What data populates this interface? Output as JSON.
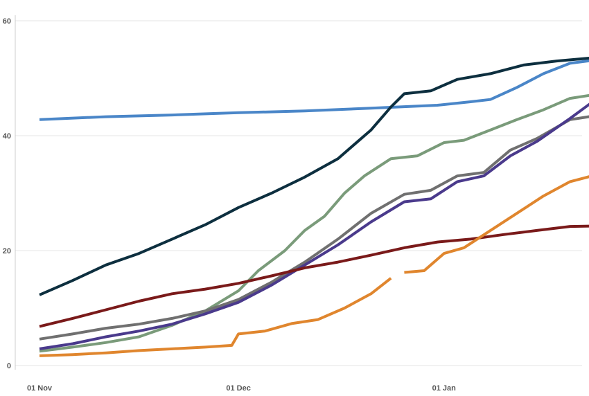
{
  "chart_data": {
    "type": "line",
    "title": "",
    "xlabel": "",
    "ylabel": "",
    "x_start": "2020-11-01",
    "x_range": [
      "2020-11-01",
      "2021-01-26"
    ],
    "ylim": [
      0,
      60
    ],
    "y_ticks": [
      0,
      20,
      40,
      60
    ],
    "x_ticks": [
      {
        "date": "2020-11-01",
        "label": "01 Nov"
      },
      {
        "date": "2020-12-01",
        "label": "01 Dec"
      },
      {
        "date": "2021-01-01",
        "label": "01 Jan"
      }
    ],
    "grid": "horizontal",
    "legend": "none",
    "series": [
      {
        "color": "#4a86c8",
        "points": [
          [
            "2020-11-01",
            42.8
          ],
          [
            "2020-11-11",
            43.3
          ],
          [
            "2020-11-21",
            43.6
          ],
          [
            "2020-12-01",
            44.0
          ],
          [
            "2020-12-11",
            44.3
          ],
          [
            "2020-12-21",
            44.8
          ],
          [
            "2020-12-31",
            45.3
          ],
          [
            "2021-01-05",
            45.9
          ],
          [
            "2021-01-08",
            46.3
          ],
          [
            "2021-01-12",
            48.4
          ],
          [
            "2021-01-16",
            50.8
          ],
          [
            "2021-01-20",
            52.6
          ],
          [
            "2021-01-24",
            53.2
          ]
        ]
      },
      {
        "color": "#0d2f3f",
        "points": [
          [
            "2020-11-01",
            12.3
          ],
          [
            "2020-11-06",
            14.8
          ],
          [
            "2020-11-11",
            17.5
          ],
          [
            "2020-11-16",
            19.5
          ],
          [
            "2020-11-21",
            22.0
          ],
          [
            "2020-11-26",
            24.5
          ],
          [
            "2020-12-01",
            27.5
          ],
          [
            "2020-12-06",
            30.0
          ],
          [
            "2020-12-11",
            32.8
          ],
          [
            "2020-12-16",
            36.0
          ],
          [
            "2020-12-21",
            41.0
          ],
          [
            "2020-12-24",
            45.0
          ],
          [
            "2020-12-26",
            47.3
          ],
          [
            "2020-12-30",
            47.8
          ],
          [
            "2021-01-03",
            49.8
          ],
          [
            "2021-01-08",
            50.8
          ],
          [
            "2021-01-13",
            52.3
          ],
          [
            "2021-01-18",
            53.0
          ],
          [
            "2021-01-24",
            53.6
          ]
        ]
      },
      {
        "color": "#7a9b7a",
        "points": [
          [
            "2020-11-01",
            2.5
          ],
          [
            "2020-11-06",
            3.2
          ],
          [
            "2020-11-11",
            4.0
          ],
          [
            "2020-11-16",
            5.0
          ],
          [
            "2020-11-21",
            7.0
          ],
          [
            "2020-11-26",
            9.5
          ],
          [
            "2020-12-01",
            13.0
          ],
          [
            "2020-12-04",
            16.5
          ],
          [
            "2020-12-08",
            20.0
          ],
          [
            "2020-12-11",
            23.5
          ],
          [
            "2020-12-14",
            26.0
          ],
          [
            "2020-12-17",
            30.0
          ],
          [
            "2020-12-20",
            33.0
          ],
          [
            "2020-12-24",
            36.0
          ],
          [
            "2020-12-28",
            36.5
          ],
          [
            "2021-01-01",
            38.8
          ],
          [
            "2021-01-04",
            39.2
          ],
          [
            "2021-01-08",
            41.0
          ],
          [
            "2021-01-12",
            42.8
          ],
          [
            "2021-01-16",
            44.5
          ],
          [
            "2021-01-20",
            46.5
          ],
          [
            "2021-01-24",
            47.2
          ]
        ]
      },
      {
        "color": "#707070",
        "points": [
          [
            "2020-11-01",
            4.6
          ],
          [
            "2020-11-06",
            5.5
          ],
          [
            "2020-11-11",
            6.5
          ],
          [
            "2020-11-16",
            7.2
          ],
          [
            "2020-11-21",
            8.2
          ],
          [
            "2020-11-26",
            9.5
          ],
          [
            "2020-12-01",
            11.5
          ],
          [
            "2020-12-06",
            14.5
          ],
          [
            "2020-12-11",
            18.0
          ],
          [
            "2020-12-16",
            22.0
          ],
          [
            "2020-12-21",
            26.5
          ],
          [
            "2020-12-26",
            29.8
          ],
          [
            "2020-12-30",
            30.5
          ],
          [
            "2021-01-03",
            33.0
          ],
          [
            "2021-01-07",
            33.6
          ],
          [
            "2021-01-11",
            37.5
          ],
          [
            "2021-01-15",
            39.5
          ],
          [
            "2021-01-20",
            42.8
          ],
          [
            "2021-01-24",
            43.5
          ]
        ]
      },
      {
        "color": "#4a3a8c",
        "points": [
          [
            "2020-11-01",
            2.9
          ],
          [
            "2020-11-06",
            3.8
          ],
          [
            "2020-11-11",
            5.0
          ],
          [
            "2020-11-16",
            6.0
          ],
          [
            "2020-11-21",
            7.2
          ],
          [
            "2020-11-26",
            9.0
          ],
          [
            "2020-12-01",
            11.0
          ],
          [
            "2020-12-06",
            14.0
          ],
          [
            "2020-12-11",
            17.5
          ],
          [
            "2020-12-16",
            21.0
          ],
          [
            "2020-12-21",
            25.0
          ],
          [
            "2020-12-26",
            28.5
          ],
          [
            "2020-12-30",
            29.0
          ],
          [
            "2021-01-03",
            32.0
          ],
          [
            "2021-01-07",
            33.0
          ],
          [
            "2021-01-11",
            36.5
          ],
          [
            "2021-01-15",
            39.0
          ],
          [
            "2021-01-20",
            43.0
          ],
          [
            "2021-01-24",
            46.4
          ]
        ]
      },
      {
        "color": "#7a1a1a",
        "points": [
          [
            "2020-11-01",
            6.8
          ],
          [
            "2020-11-06",
            8.2
          ],
          [
            "2020-11-11",
            9.7
          ],
          [
            "2020-11-16",
            11.2
          ],
          [
            "2020-11-21",
            12.5
          ],
          [
            "2020-11-26",
            13.3
          ],
          [
            "2020-12-01",
            14.3
          ],
          [
            "2020-12-06",
            15.6
          ],
          [
            "2020-12-11",
            17.0
          ],
          [
            "2020-12-16",
            18.0
          ],
          [
            "2020-12-21",
            19.2
          ],
          [
            "2020-12-26",
            20.5
          ],
          [
            "2020-12-31",
            21.5
          ],
          [
            "2021-01-05",
            22.0
          ],
          [
            "2021-01-10",
            22.8
          ],
          [
            "2021-01-15",
            23.5
          ],
          [
            "2021-01-20",
            24.2
          ],
          [
            "2021-01-25",
            24.3
          ]
        ]
      },
      {
        "color": "#e0862e",
        "points": [
          [
            "2020-11-01",
            1.7
          ],
          [
            "2020-11-06",
            1.9
          ],
          [
            "2020-11-11",
            2.2
          ],
          [
            "2020-11-16",
            2.6
          ],
          [
            "2020-11-21",
            2.9
          ],
          [
            "2020-11-26",
            3.2
          ],
          [
            "2020-11-30",
            3.5
          ],
          [
            "2020-12-01",
            5.5
          ],
          [
            "2020-12-05",
            6.0
          ],
          [
            "2020-12-09",
            7.3
          ],
          [
            "2020-12-13",
            8.0
          ],
          [
            "2020-12-17",
            10.0
          ],
          [
            "2020-12-21",
            12.5
          ],
          [
            "2020-12-24",
            15.2
          ],
          null,
          [
            "2020-12-26",
            16.2
          ],
          [
            "2020-12-29",
            16.5
          ],
          [
            "2021-01-01",
            19.5
          ],
          [
            "2021-01-04",
            20.5
          ],
          [
            "2021-01-08",
            23.5
          ],
          [
            "2021-01-12",
            26.5
          ],
          [
            "2021-01-16",
            29.5
          ],
          [
            "2021-01-20",
            32.0
          ],
          [
            "2021-01-25",
            33.5
          ]
        ]
      }
    ]
  }
}
